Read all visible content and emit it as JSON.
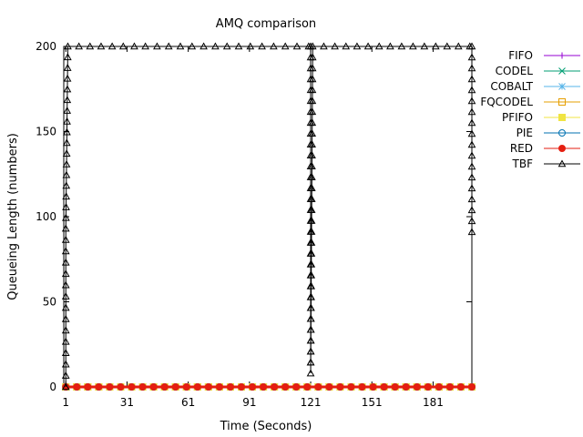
{
  "chart_data": {
    "type": "line",
    "title": "AMQ comparison",
    "xlabel": "Time (Seconds)",
    "ylabel": "Queueing Length (numbers)",
    "xlim": [
      0,
      200
    ],
    "ylim": [
      0,
      200
    ],
    "x_ticks": [
      1,
      31,
      61,
      91,
      121,
      151,
      181
    ],
    "y_ticks": [
      0,
      50,
      100,
      150,
      200
    ],
    "grid": false,
    "legend_position": "right",
    "series": [
      {
        "name": "FIFO",
        "color": "#9400d3",
        "marker": "plus",
        "x": [
          1,
          200
        ],
        "y": [
          0,
          0
        ]
      },
      {
        "name": "CODEL",
        "color": "#009e73",
        "marker": "cross",
        "x": [
          1,
          200
        ],
        "y": [
          0,
          0
        ]
      },
      {
        "name": "COBALT",
        "color": "#56b4e9",
        "marker": "star",
        "x": [
          1,
          200
        ],
        "y": [
          0,
          0
        ]
      },
      {
        "name": "FQCODEL",
        "color": "#e69f00",
        "marker": "square",
        "x": [
          1,
          200
        ],
        "y": [
          0,
          0
        ]
      },
      {
        "name": "PFIFO",
        "color": "#f0e442",
        "marker": "square-filled",
        "x": [
          1,
          200
        ],
        "y": [
          0,
          0
        ]
      },
      {
        "name": "PIE",
        "color": "#0072b2",
        "marker": "circle",
        "x": [
          1,
          200
        ],
        "y": [
          0,
          0
        ]
      },
      {
        "name": "RED",
        "color": "#e51e10",
        "marker": "circle-filled",
        "x": [
          1,
          200
        ],
        "y": [
          0,
          0
        ]
      },
      {
        "name": "TBF",
        "color": "#000000",
        "marker": "triangle",
        "x": [
          1,
          1,
          2,
          40,
          80,
          120,
          121,
          121,
          122,
          160,
          199,
          200,
          200
        ],
        "y": [
          0,
          93,
          200,
          200,
          200,
          200,
          200,
          8,
          200,
          200,
          200,
          200,
          91
        ]
      }
    ]
  }
}
